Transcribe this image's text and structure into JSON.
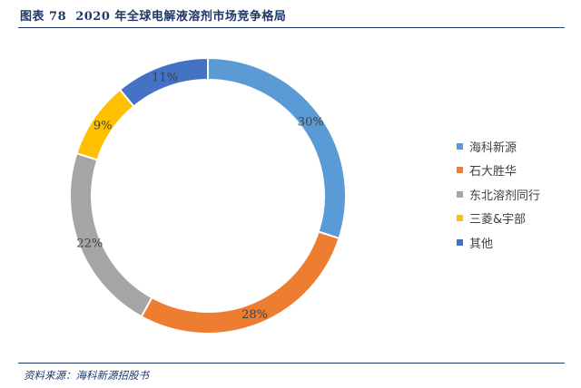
{
  "header": {
    "figure_label": "图表 78",
    "title": "2020 年全球电解液溶剂市场竞争格局"
  },
  "source": "资料来源：海科新源招股书",
  "chart_data": {
    "type": "pie",
    "style": "donut",
    "title": "2020 年全球电解液溶剂市场竞争格局",
    "unit": "%",
    "legend_position": "right",
    "categories": [
      "海科新源",
      "石大胜华",
      "东北溶剂同行",
      "三菱&宇部",
      "其他"
    ],
    "values": [
      30,
      28,
      22,
      9,
      11
    ],
    "labels": [
      "30%",
      "28%",
      "22%",
      "9%",
      "11%"
    ],
    "colors": [
      "#5b9bd5",
      "#ed7d31",
      "#a5a5a5",
      "#ffc000",
      "#4472c4"
    ]
  }
}
